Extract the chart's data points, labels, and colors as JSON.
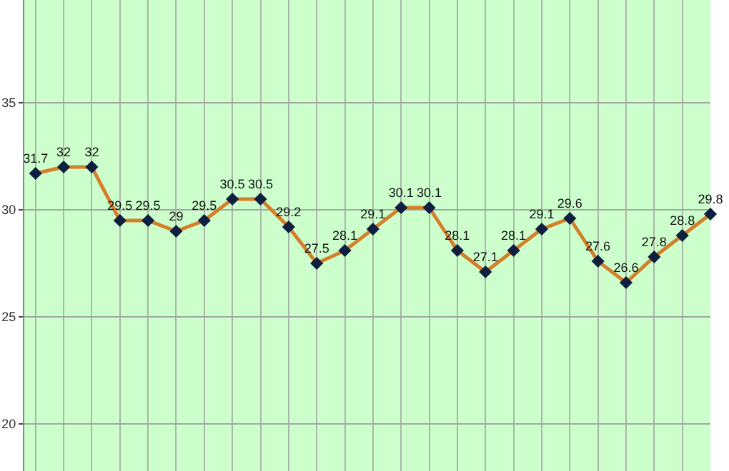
{
  "chart_data": {
    "type": "line",
    "categories": [
      null,
      null,
      null,
      null,
      null,
      null,
      null,
      null,
      null,
      null,
      null,
      null,
      null,
      null,
      null,
      null,
      null,
      null,
      null,
      null,
      null,
      null,
      null,
      null,
      null
    ],
    "series": [
      {
        "color": "#d4802a",
        "values": [
          31.7,
          32,
          32,
          29.5,
          29.5,
          29,
          29.5,
          30.5,
          30.5,
          29.2,
          27.5,
          28.1,
          29.1,
          30.1,
          30.1,
          28.1,
          27.1,
          28.1,
          29.1,
          29.6,
          27.6,
          26.6,
          27.8,
          28.8,
          29.8
        ]
      }
    ],
    "ylim": [
      17.8,
      39.8
    ],
    "yticks": [
      20,
      25,
      30,
      35
    ],
    "grid": true,
    "marker": "diamond",
    "line_style": "solid",
    "data_labels": true
  }
}
